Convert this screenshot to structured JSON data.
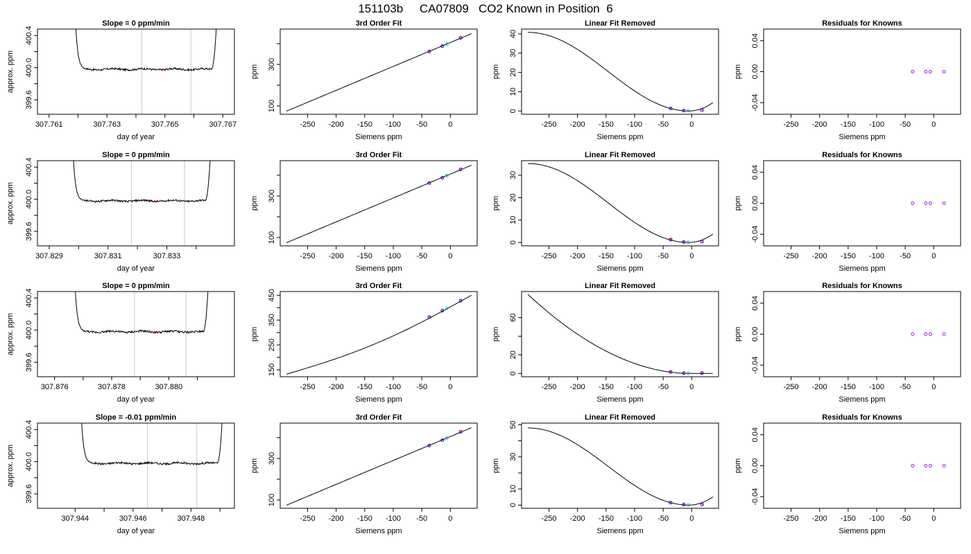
{
  "title": "151103b     CA07809   CO2 Known in Position  6",
  "colors": {
    "line": "#000000",
    "guide": "#c8c8c8",
    "known": "#0000ff",
    "highlight": "#00cccc",
    "resid": "#a020f0",
    "red": "#ff0000"
  },
  "chart_data": [
    {
      "type": "line",
      "title": "Slope =  0  ppm/min",
      "xlabel": "day of year",
      "ylabel": "approx. ppm",
      "xlim": [
        307.7606,
        307.7674
      ],
      "ylim": [
        399.42,
        400.48
      ],
      "xticks": [
        307.761,
        307.762,
        307.763,
        307.764,
        307.765,
        307.766,
        307.767
      ],
      "xtick_labels": [
        "307.761",
        "",
        "307.763",
        "",
        "307.765",
        "",
        "307.767"
      ],
      "yticks": [
        399.6,
        399.8,
        400.0,
        400.2,
        400.4
      ],
      "ytick_labels": [
        "399.6",
        "",
        "400.0",
        "",
        "400.4"
      ],
      "vlines": [
        307.7642,
        307.7659
      ],
      "trace": {
        "x_start": 307.7619,
        "x_drop_end": 307.7623,
        "x_rise_start": 307.7666,
        "x_end": 307.7668,
        "level": 399.98,
        "noise": 0.012
      },
      "points": [
        {
          "x": 307.765,
          "y": 399.97
        }
      ]
    },
    {
      "type": "line",
      "title": "3rd Order Fit",
      "xlabel": "Siemens ppm",
      "ylabel": "ppm",
      "xlim": [
        -298,
        47
      ],
      "ylim": [
        60,
        470
      ],
      "xticks": [
        -250,
        -200,
        -150,
        -100,
        -50,
        0
      ],
      "xtick_labels": [
        "-250",
        "-200",
        "-150",
        "-100",
        "-50",
        "0"
      ],
      "yticks": [
        100,
        200,
        300,
        400
      ],
      "ytick_labels": [
        "100",
        "",
        "300",
        ""
      ],
      "curve": {
        "x0": -287,
        "x1": 37,
        "y0": 75,
        "y1": 448,
        "c3": 0
      },
      "points": [
        {
          "x": -37,
          "y": 362
        },
        {
          "x": -14,
          "y": 388
        },
        {
          "x": -6,
          "y": 398
        },
        {
          "x": 18,
          "y": 428
        }
      ]
    },
    {
      "type": "line",
      "title": "Linear Fit Removed",
      "xlabel": "Siemens ppm",
      "ylabel": "ppm",
      "xlim": [
        -298,
        47
      ],
      "ylim": [
        -1.7,
        42.5
      ],
      "xticks": [
        -250,
        -200,
        -150,
        -100,
        -50,
        0
      ],
      "xtick_labels": [
        "-250",
        "-200",
        "-150",
        "-100",
        "-50",
        "0"
      ],
      "yticks": [
        0,
        10,
        20,
        30,
        40
      ],
      "ytick_labels": [
        "0",
        "10",
        "20",
        "30",
        "40"
      ],
      "cubic": {
        "x0": -287,
        "x1": 37,
        "ymax": 40.8
      },
      "points": [
        {
          "x": -37,
          "y": 1.3
        },
        {
          "x": -14,
          "y": 0.2
        },
        {
          "x": -6,
          "y": 0.1
        },
        {
          "x": 18,
          "y": 0.4
        }
      ]
    },
    {
      "type": "scatter",
      "title": "Residuals for Knowns",
      "xlabel": "Siemens ppm",
      "ylabel": "ppm",
      "xlim": [
        -298,
        47
      ],
      "ylim": [
        -0.055,
        0.055
      ],
      "xticks": [
        -250,
        -200,
        -150,
        -100,
        -50,
        0
      ],
      "xtick_labels": [
        "-250",
        "-200",
        "-150",
        "-100",
        "-50",
        "0"
      ],
      "yticks": [
        -0.04,
        0.0,
        0.04
      ],
      "ytick_labels": [
        "-0.04",
        "0.00",
        "0.04"
      ],
      "points": [
        {
          "x": -37,
          "y": 0
        },
        {
          "x": -14,
          "y": 0
        },
        {
          "x": -6,
          "y": 0
        },
        {
          "x": 18,
          "y": 0
        }
      ]
    },
    {
      "type": "line",
      "title": "Slope =  0  ppm/min",
      "xlabel": "day of year",
      "ylabel": "approx. ppm",
      "xlim": [
        307.8286,
        307.8353
      ],
      "ylim": [
        399.42,
        400.48
      ],
      "xticks": [
        307.829,
        307.83,
        307.831,
        307.832,
        307.833,
        307.834
      ],
      "xtick_labels": [
        "307.829",
        "",
        "307.831",
        "",
        "307.833",
        ""
      ],
      "yticks": [
        399.6,
        399.8,
        400.0,
        400.2,
        400.4
      ],
      "ytick_labels": [
        "399.6",
        "",
        "400.0",
        "",
        "400.4"
      ],
      "vlines": [
        307.8318,
        307.8336
      ],
      "trace": {
        "x_start": 307.8298,
        "x_drop_end": 307.8302,
        "x_rise_start": 307.8343,
        "x_end": 307.8345,
        "level": 399.98,
        "noise": 0.012
      },
      "points": [
        {
          "x": 307.8326,
          "y": 399.97
        }
      ]
    },
    {
      "type": "line",
      "title": "3rd Order Fit",
      "xlabel": "Siemens ppm",
      "ylabel": "ppm",
      "xlim": [
        -298,
        47
      ],
      "ylim": [
        60,
        470
      ],
      "xticks": [
        -250,
        -200,
        -150,
        -100,
        -50,
        0
      ],
      "xtick_labels": [
        "-250",
        "-200",
        "-150",
        "-100",
        "-50",
        "0"
      ],
      "yticks": [
        100,
        200,
        300,
        400
      ],
      "ytick_labels": [
        "100",
        "",
        "300",
        ""
      ],
      "curve": {
        "x0": -287,
        "x1": 37,
        "y0": 75,
        "y1": 448,
        "c3": 0
      },
      "points": [
        {
          "x": -37,
          "y": 362
        },
        {
          "x": -14,
          "y": 388
        },
        {
          "x": -6,
          "y": 398
        },
        {
          "x": 18,
          "y": 428
        }
      ]
    },
    {
      "type": "line",
      "title": "Linear Fit Removed",
      "xlabel": "Siemens ppm",
      "ylabel": "ppm",
      "xlim": [
        -298,
        47
      ],
      "ylim": [
        -1.5,
        36.5
      ],
      "xticks": [
        -250,
        -200,
        -150,
        -100,
        -50,
        0
      ],
      "xtick_labels": [
        "-250",
        "-200",
        "-150",
        "-100",
        "-50",
        "0"
      ],
      "yticks": [
        0,
        10,
        20,
        30
      ],
      "ytick_labels": [
        "0",
        "10",
        "20",
        "30"
      ],
      "cubic": {
        "x0": -287,
        "x1": 37,
        "ymax": 35.2
      },
      "points": [
        {
          "x": -37,
          "y": 1.3
        },
        {
          "x": -14,
          "y": 0.2
        },
        {
          "x": -6,
          "y": 0.1
        },
        {
          "x": 18,
          "y": 0.4
        }
      ]
    },
    {
      "type": "scatter",
      "title": "Residuals for Knowns",
      "xlabel": "Siemens ppm",
      "ylabel": "ppm",
      "xlim": [
        -298,
        47
      ],
      "ylim": [
        -0.055,
        0.055
      ],
      "xticks": [
        -250,
        -200,
        -150,
        -100,
        -50,
        0
      ],
      "xtick_labels": [
        "-250",
        "-200",
        "-150",
        "-100",
        "-50",
        "0"
      ],
      "yticks": [
        -0.04,
        0.0,
        0.04
      ],
      "ytick_labels": [
        "-0.04",
        "0.00",
        "0.04"
      ],
      "points": [
        {
          "x": -37,
          "y": 0
        },
        {
          "x": -14,
          "y": 0
        },
        {
          "x": -6,
          "y": 0
        },
        {
          "x": 18,
          "y": 0
        }
      ]
    },
    {
      "type": "line",
      "title": "Slope =  0  ppm/min",
      "xlabel": "day of year",
      "ylabel": "approx. ppm",
      "xlim": [
        307.8754,
        307.8823
      ],
      "ylim": [
        399.42,
        400.48
      ],
      "xticks": [
        307.876,
        307.877,
        307.878,
        307.879,
        307.88,
        307.881
      ],
      "xtick_labels": [
        "307.876",
        "",
        "307.878",
        "",
        "307.880",
        ""
      ],
      "yticks": [
        399.6,
        399.8,
        400.0,
        400.2,
        400.4
      ],
      "ytick_labels": [
        "399.6",
        "",
        "400.0",
        "",
        "400.4"
      ],
      "vlines": [
        307.8788,
        307.8806
      ],
      "trace": {
        "x_start": 307.8767,
        "x_drop_end": 307.8771,
        "x_rise_start": 307.8812,
        "x_end": 307.8814,
        "level": 399.98,
        "noise": 0.013
      },
      "points": [
        {
          "x": 307.8796,
          "y": 399.97
        }
      ]
    },
    {
      "type": "line",
      "title": "3rd Order Fit",
      "xlabel": "Siemens ppm",
      "ylabel": "ppm",
      "xlim": [
        -298,
        47
      ],
      "ylim": [
        122,
        465
      ],
      "xticks": [
        -250,
        -200,
        -150,
        -100,
        -50,
        0
      ],
      "xtick_labels": [
        "-250",
        "-200",
        "-150",
        "-100",
        "-50",
        "0"
      ],
      "yticks": [
        150,
        200,
        250,
        300,
        350,
        400,
        450
      ],
      "ytick_labels": [
        "150",
        "",
        "250",
        "",
        "350",
        "",
        "450"
      ],
      "curve": {
        "x0": -287,
        "x1": 37,
        "y0": 132,
        "y1": 450,
        "c3": 30
      },
      "points": [
        {
          "x": -37,
          "y": 362
        },
        {
          "x": -14,
          "y": 388
        },
        {
          "x": -6,
          "y": 398
        },
        {
          "x": 18,
          "y": 428
        }
      ]
    },
    {
      "type": "line",
      "title": "Linear Fit Removed",
      "xlabel": "Siemens ppm",
      "ylabel": "ppm",
      "xlim": [
        -298,
        47
      ],
      "ylim": [
        -3.5,
        88
      ],
      "xticks": [
        -250,
        -200,
        -150,
        -100,
        -50,
        0
      ],
      "xtick_labels": [
        "-250",
        "-200",
        "-150",
        "-100",
        "-50",
        "0"
      ],
      "yticks": [
        0,
        20,
        40,
        60
      ],
      "ytick_labels": [
        "0",
        "20",
        "",
        "60"
      ],
      "cubic": {
        "x0": -287,
        "x1": 37,
        "ymax": 85,
        "decay": true
      },
      "points": [
        {
          "x": -37,
          "y": 1.5
        },
        {
          "x": -14,
          "y": 0.3
        },
        {
          "x": -6,
          "y": 0.1
        },
        {
          "x": 18,
          "y": 0.4
        }
      ]
    },
    {
      "type": "scatter",
      "title": "Residuals for Knowns",
      "xlabel": "Siemens ppm",
      "ylabel": "ppm",
      "xlim": [
        -298,
        47
      ],
      "ylim": [
        -0.055,
        0.055
      ],
      "xticks": [
        -250,
        -200,
        -150,
        -100,
        -50,
        0
      ],
      "xtick_labels": [
        "-250",
        "-200",
        "-150",
        "-100",
        "-50",
        "0"
      ],
      "yticks": [
        -0.04,
        0.0,
        0.04
      ],
      "ytick_labels": [
        "-0.04",
        "0.00",
        "0.04"
      ],
      "points": [
        {
          "x": -37,
          "y": 0
        },
        {
          "x": -14,
          "y": 0
        },
        {
          "x": -6,
          "y": 0
        },
        {
          "x": 18,
          "y": 0
        }
      ]
    },
    {
      "type": "line",
      "title": "Slope =  -0.01  ppm/min",
      "xlabel": "day of year",
      "ylabel": "approx. ppm",
      "xlim": [
        307.9427,
        307.9495
      ],
      "ylim": [
        399.42,
        400.48
      ],
      "xticks": [
        307.944,
        307.945,
        307.946,
        307.947,
        307.948,
        307.949
      ],
      "xtick_labels": [
        "307.944",
        "",
        "307.946",
        "",
        "307.948",
        ""
      ],
      "yticks": [
        399.6,
        399.8,
        400.0,
        400.2,
        400.4
      ],
      "ytick_labels": [
        "399.6",
        "",
        "400.0",
        "",
        "400.4"
      ],
      "vlines": [
        307.9465,
        307.9482
      ],
      "trace": {
        "x_start": 307.9442,
        "x_drop_end": 307.9446,
        "x_rise_start": 307.9489,
        "x_end": 307.9491,
        "level": 399.98,
        "noise": 0.012
      },
      "points": [
        {
          "x": 307.9472,
          "y": 399.97
        }
      ]
    },
    {
      "type": "line",
      "title": "3rd Order Fit",
      "xlabel": "Siemens ppm",
      "ylabel": "ppm",
      "xlim": [
        -298,
        47
      ],
      "ylim": [
        60,
        470
      ],
      "xticks": [
        -250,
        -200,
        -150,
        -100,
        -50,
        0
      ],
      "xtick_labels": [
        "-250",
        "-200",
        "-150",
        "-100",
        "-50",
        "0"
      ],
      "yticks": [
        100,
        200,
        300,
        400
      ],
      "ytick_labels": [
        "100",
        "",
        "300",
        ""
      ],
      "curve": {
        "x0": -287,
        "x1": 37,
        "y0": 75,
        "y1": 448,
        "c3": 0
      },
      "points": [
        {
          "x": -37,
          "y": 362
        },
        {
          "x": -14,
          "y": 388
        },
        {
          "x": -6,
          "y": 398
        },
        {
          "x": 18,
          "y": 428
        }
      ]
    },
    {
      "type": "line",
      "title": "Linear Fit Removed",
      "xlabel": "Siemens ppm",
      "ylabel": "ppm",
      "xlim": [
        -298,
        47
      ],
      "ylim": [
        -2,
        51
      ],
      "xticks": [
        -250,
        -200,
        -150,
        -100,
        -50,
        0
      ],
      "xtick_labels": [
        "-250",
        "-200",
        "-150",
        "-100",
        "-50",
        "0"
      ],
      "yticks": [
        0,
        10,
        20,
        30,
        40,
        50
      ],
      "ytick_labels": [
        "0",
        "10",
        "",
        "30",
        "",
        "50"
      ],
      "cubic": {
        "x0": -287,
        "x1": 37,
        "ymax": 48
      },
      "points": [
        {
          "x": -37,
          "y": 1.5
        },
        {
          "x": -14,
          "y": 0.3
        },
        {
          "x": -6,
          "y": 0.1
        },
        {
          "x": 18,
          "y": 0.4
        }
      ]
    },
    {
      "type": "scatter",
      "title": "Residuals for Knowns",
      "xlabel": "Siemens ppm",
      "ylabel": "ppm",
      "xlim": [
        -298,
        47
      ],
      "ylim": [
        -0.055,
        0.055
      ],
      "xticks": [
        -250,
        -200,
        -150,
        -100,
        -50,
        0
      ],
      "xtick_labels": [
        "-250",
        "-200",
        "-150",
        "-100",
        "-50",
        "0"
      ],
      "yticks": [
        -0.04,
        0.0,
        0.04
      ],
      "ytick_labels": [
        "-0.04",
        "0.00",
        "0.04"
      ],
      "points": [
        {
          "x": -37,
          "y": 0
        },
        {
          "x": -14,
          "y": 0
        },
        {
          "x": -6,
          "y": 0
        },
        {
          "x": 18,
          "y": 0
        }
      ]
    }
  ]
}
